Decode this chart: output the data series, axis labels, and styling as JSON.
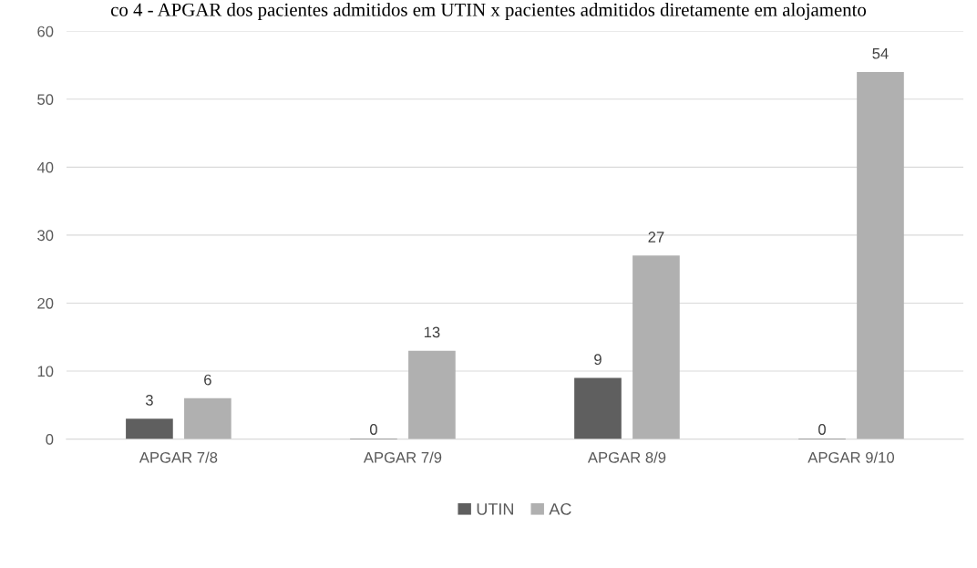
{
  "chart_data": {
    "type": "bar",
    "title": "co 4 - APGAR dos pacientes admitidos em UTIN x pacientes admitidos diretamente em alojamento",
    "categories": [
      "APGAR 7/8",
      "APGAR 7/9",
      "APGAR 8/9",
      "APGAR 9/10"
    ],
    "series": [
      {
        "name": "UTIN",
        "color": "#5f5f5f",
        "values": [
          3,
          0,
          9,
          0
        ]
      },
      {
        "name": "AC",
        "color": "#b0b0b0",
        "values": [
          6,
          13,
          27,
          54
        ]
      }
    ],
    "ylim": [
      0,
      60
    ],
    "yticks": [
      0,
      10,
      20,
      30,
      40,
      50,
      60
    ],
    "grid": "y",
    "legend": "bottom",
    "data_labels": true
  }
}
